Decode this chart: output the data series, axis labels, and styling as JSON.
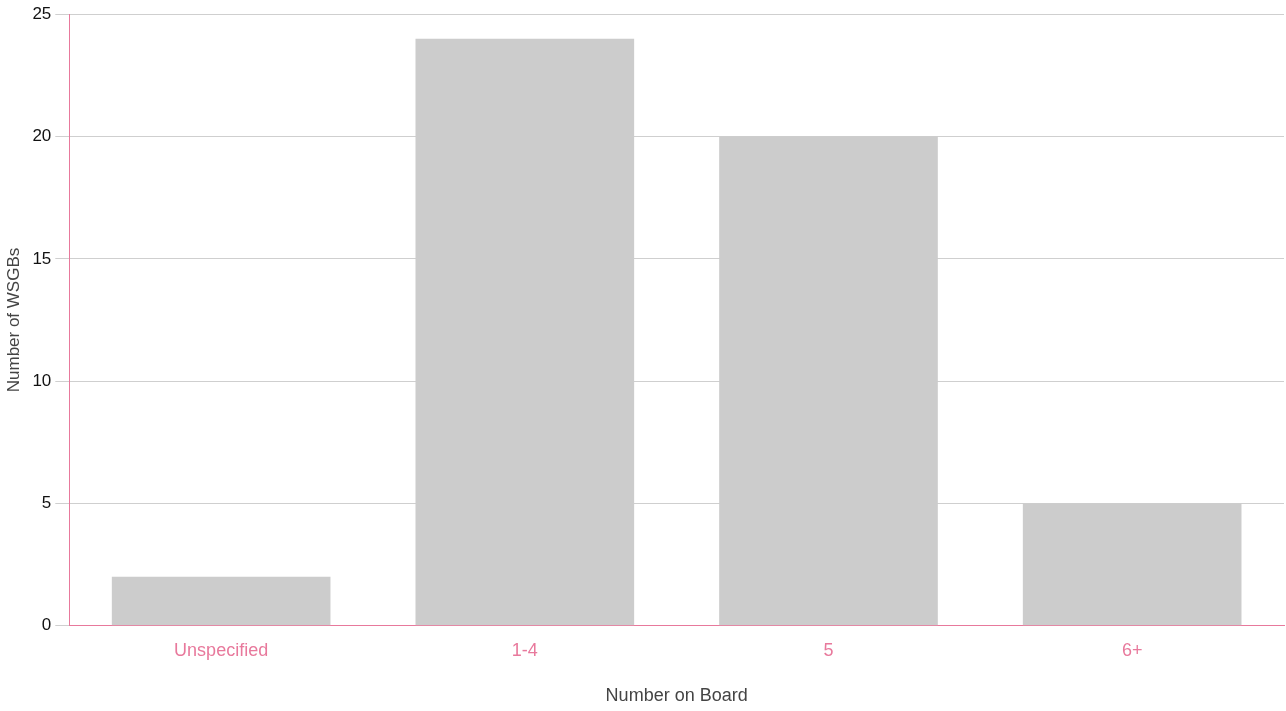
{
  "chart_data": {
    "type": "bar",
    "xlabel": "Number on Board",
    "ylabel": "Number of WSGBs",
    "categories": [
      "Unspecified",
      "1-4",
      "5",
      "6+"
    ],
    "values": [
      2,
      24,
      20,
      5
    ],
    "color": "#cccccc",
    "ylim": [
      0,
      25
    ],
    "yticks": [
      0,
      5,
      10,
      15,
      20,
      25
    ],
    "grid": "y",
    "legend": false
  }
}
